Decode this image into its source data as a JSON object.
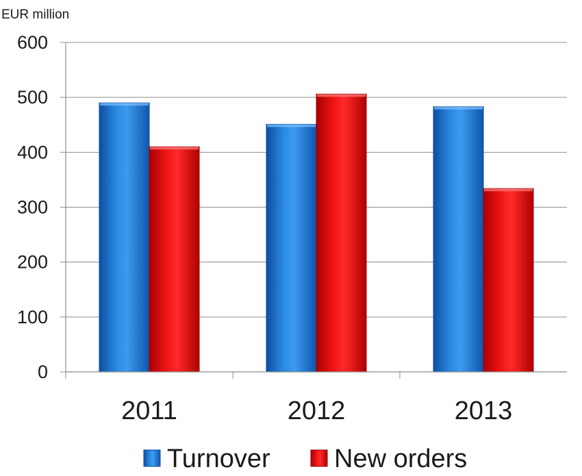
{
  "chart_data": {
    "type": "bar",
    "unit_label": "EUR million",
    "categories": [
      "2011",
      "2012",
      "2013"
    ],
    "series": [
      {
        "name": "Turnover",
        "values": [
          490,
          451,
          483
        ],
        "color": "#1f7ad0"
      },
      {
        "name": "New orders",
        "values": [
          410,
          506,
          334
        ],
        "color": "#e00d0d"
      }
    ],
    "ylim": [
      0,
      600
    ],
    "yticks": [
      "0",
      "100",
      "200",
      "300",
      "400",
      "500",
      "600"
    ],
    "grid": true,
    "legend_position": "bottom"
  }
}
